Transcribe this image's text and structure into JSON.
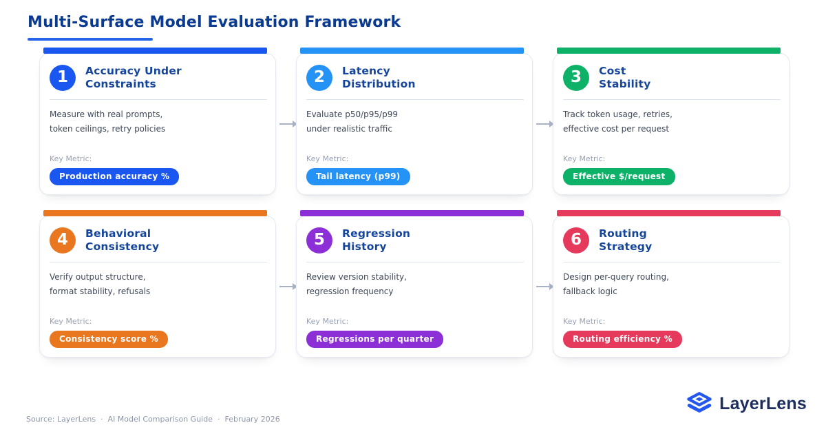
{
  "header": {
    "title": "Multi-Surface Model Evaluation Framework"
  },
  "cards": [
    {
      "number": "1",
      "title": "Accuracy Under\nConstraints",
      "description": "Measure with real prompts,\ntoken ceilings, retry policies",
      "key_metric_label": "Key Metric:",
      "metric": "Production accuracy %",
      "color": "#1a56f0"
    },
    {
      "number": "2",
      "title": "Latency\nDistribution",
      "description": "Evaluate p50/p95/p99\nunder realistic traffic",
      "key_metric_label": "Key Metric:",
      "metric": "Tail latency (p99)",
      "color": "#2493f5"
    },
    {
      "number": "3",
      "title": "Cost\nStability",
      "description": "Track token usage, retries,\neffective cost per request",
      "key_metric_label": "Key Metric:",
      "metric": "Effective $/request",
      "color": "#0db167"
    },
    {
      "number": "4",
      "title": "Behavioral\nConsistency",
      "description": "Verify output structure,\nformat stability, refusals",
      "key_metric_label": "Key Metric:",
      "metric": "Consistency score %",
      "color": "#e8771f"
    },
    {
      "number": "5",
      "title": "Regression\nHistory",
      "description": "Review version stability,\nregression frequency",
      "key_metric_label": "Key Metric:",
      "metric": "Regressions per quarter",
      "color": "#8d2fd6"
    },
    {
      "number": "6",
      "title": "Routing\nStrategy",
      "description": "Design per-query routing,\nfallback logic",
      "key_metric_label": "Key Metric:",
      "metric": "Routing efficiency %",
      "color": "#e63a5c"
    }
  ],
  "footer": {
    "source": "Source: LayerLens  ·  AI Model Comparison Guide  ·  February 2026",
    "brand": "LayerLens"
  },
  "colors": {
    "accent": "#2563eb",
    "title_navy": "#0b3a91",
    "card_title_navy": "#16459c",
    "body_text": "#3d4757",
    "muted_label": "#97a1b3",
    "arrow": "#aab3c5",
    "card_border": "#e4e9f2",
    "logo_blue": "#2456f0",
    "logo_text": "#1c2d5e"
  },
  "icons": {
    "flow_arrow": "arrow-right-icon",
    "brand": "layers-icon"
  }
}
